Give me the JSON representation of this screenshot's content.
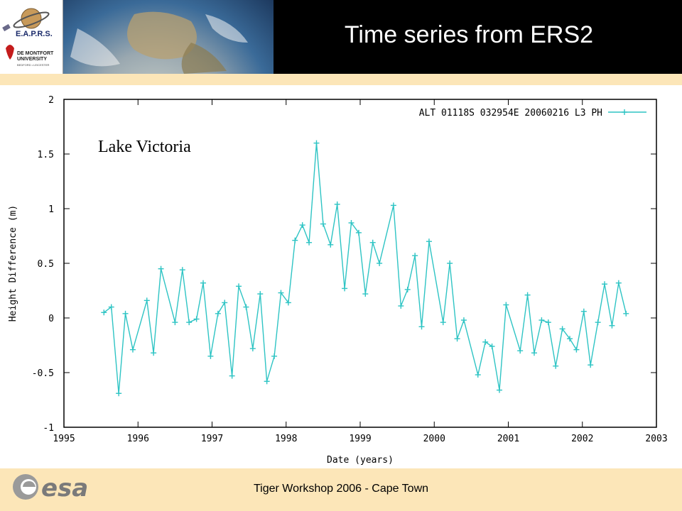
{
  "header": {
    "title": "Time series from ERS2",
    "logo_eaprs": "E.A.P.R.S.",
    "logo_dmu_line1": "DE MONTFORT",
    "logo_dmu_line2": "UNIVERSITY",
    "logo_dmu_line3": "BEDFORD • LEICESTER"
  },
  "footer": {
    "text": "Tiger Workshop 2006 - Cape Town",
    "esa_logo": "esa"
  },
  "colors": {
    "series": "#2ec4c4",
    "background": "#fce6b8",
    "header": "#000000"
  },
  "chart_data": {
    "type": "line",
    "annotation": "Lake Victoria",
    "xlabel": "Date (years)",
    "ylabel": "Height Difference (m)",
    "xlim": [
      1995,
      2003
    ],
    "ylim": [
      -1,
      2
    ],
    "xticks": [
      "1995",
      "1996",
      "1997",
      "1998",
      "1999",
      "2000",
      "2001",
      "2002",
      "2003"
    ],
    "yticks": [
      "2",
      "1.5",
      "1",
      "0.5",
      "0",
      "-0.5",
      "-1"
    ],
    "legend_position": "top-right",
    "grid": false,
    "series": [
      {
        "name": "ALT 01118S 032954E 20060216 L3 PH",
        "marker": "plus",
        "x": [
          1995.54,
          1995.64,
          1995.74,
          1995.83,
          1995.93,
          1996.12,
          1996.21,
          1996.31,
          1996.5,
          1996.6,
          1996.69,
          1996.79,
          1996.88,
          1996.98,
          1997.08,
          1997.17,
          1997.27,
          1997.36,
          1997.46,
          1997.55,
          1997.65,
          1997.74,
          1997.84,
          1997.93,
          1998.03,
          1998.12,
          1998.22,
          1998.31,
          1998.41,
          1998.5,
          1998.6,
          1998.69,
          1998.79,
          1998.88,
          1998.98,
          1999.07,
          1999.17,
          1999.26,
          1999.45,
          1999.55,
          1999.64,
          1999.74,
          1999.83,
          1999.93,
          2000.12,
          2000.21,
          2000.31,
          2000.4,
          2000.59,
          2000.69,
          2000.78,
          2000.88,
          2000.97,
          2001.16,
          2001.26,
          2001.35,
          2001.45,
          2001.54,
          2001.64,
          2001.73,
          2001.83,
          2001.92,
          2002.02,
          2002.11,
          2002.21,
          2002.3,
          2002.4,
          2002.49,
          2002.59
        ],
        "y": [
          0.05,
          0.1,
          -0.69,
          0.04,
          -0.29,
          0.16,
          -0.32,
          0.45,
          -0.04,
          0.44,
          -0.04,
          -0.01,
          0.32,
          -0.35,
          0.04,
          0.14,
          -0.53,
          0.29,
          0.1,
          -0.28,
          0.22,
          -0.58,
          -0.35,
          0.23,
          0.14,
          0.71,
          0.85,
          0.69,
          1.6,
          0.86,
          0.67,
          1.04,
          0.27,
          0.87,
          0.78,
          0.22,
          0.69,
          0.5,
          1.03,
          0.11,
          0.26,
          0.57,
          -0.08,
          0.7,
          -0.04,
          0.5,
          -0.19,
          -0.02,
          -0.52,
          -0.22,
          -0.26,
          -0.66,
          0.12,
          -0.3,
          0.21,
          -0.32,
          -0.02,
          -0.04,
          -0.44,
          -0.1,
          -0.19,
          -0.29,
          0.06,
          -0.43,
          -0.04,
          0.31,
          -0.07,
          0.32,
          0.04
        ]
      }
    ]
  }
}
